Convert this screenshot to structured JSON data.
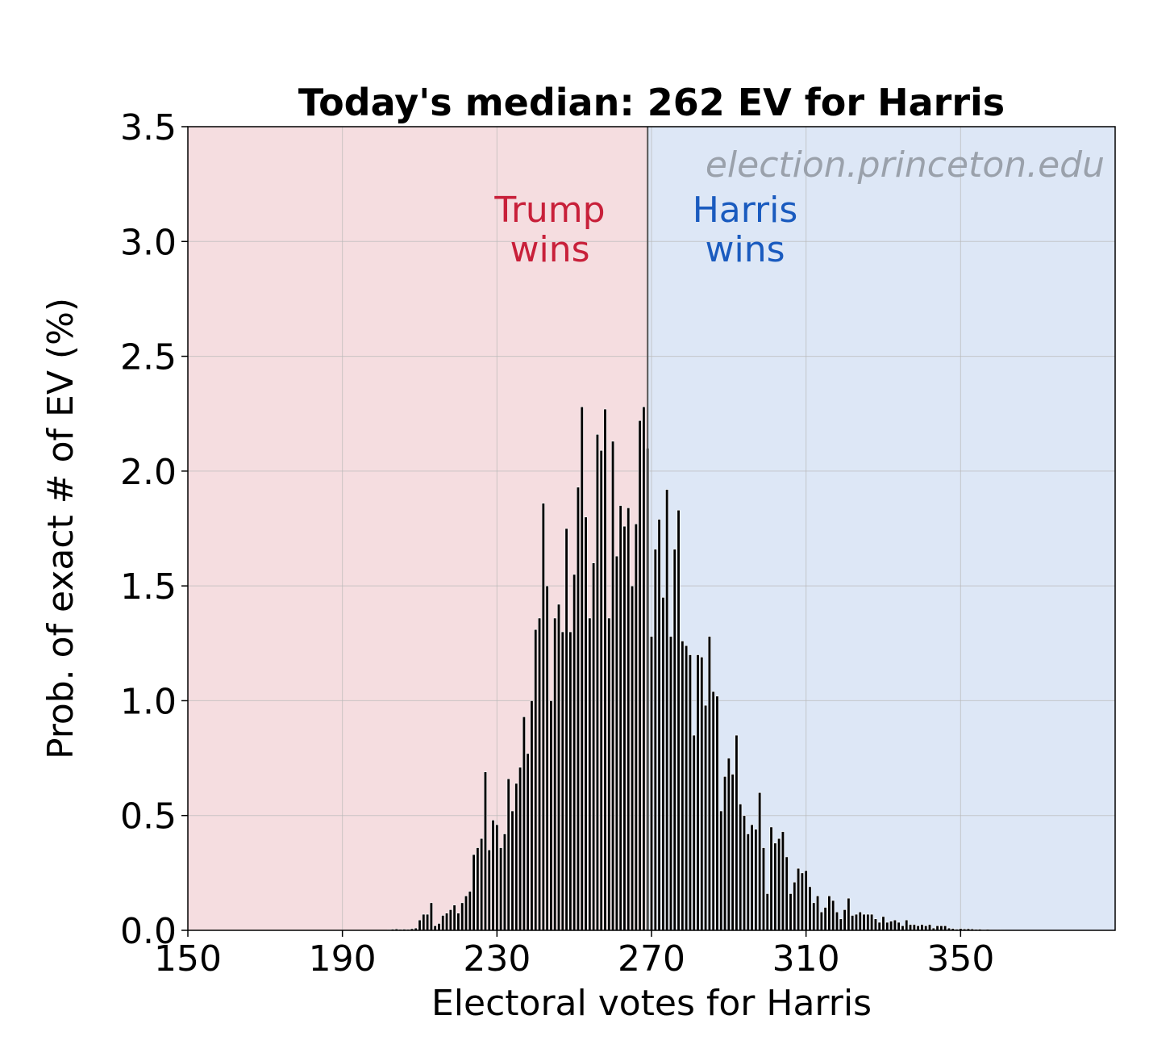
{
  "chart_data": {
    "type": "bar",
    "title": "Today's median: 262 EV for Harris",
    "xlabel": "Electoral votes for Harris",
    "ylabel": "Prob. of exact # of EV (%)",
    "xlim": [
      150,
      390
    ],
    "ylim": [
      0,
      3.5
    ],
    "xticks": [
      "150",
      "190",
      "230",
      "270",
      "310",
      "350"
    ],
    "yticks": [
      "0.0",
      "0.5",
      "1.0",
      "1.5",
      "2.0",
      "2.5",
      "3.0",
      "3.5"
    ],
    "grid": true,
    "threshold": 269,
    "regions": [
      {
        "label_line1": "Trump",
        "label_line2": "wins",
        "color": "#c8203a",
        "fill": "#f5dde0"
      },
      {
        "label_line1": "Harris",
        "label_line2": "wins",
        "color": "#1a5bbf",
        "fill": "#dde7f6"
      }
    ],
    "watermark": "election.princeton.edu",
    "watermark_color": "#9aa1ab",
    "bar_color": "#000000",
    "x": [
      202,
      203,
      204,
      205,
      206,
      207,
      208,
      209,
      210,
      211,
      212,
      213,
      214,
      215,
      216,
      217,
      218,
      219,
      220,
      221,
      222,
      223,
      224,
      225,
      226,
      227,
      228,
      229,
      230,
      231,
      232,
      233,
      234,
      235,
      236,
      237,
      238,
      239,
      240,
      241,
      242,
      243,
      244,
      245,
      246,
      247,
      248,
      249,
      250,
      251,
      252,
      253,
      254,
      255,
      256,
      257,
      258,
      259,
      260,
      261,
      262,
      263,
      264,
      265,
      266,
      267,
      268,
      269,
      270,
      271,
      272,
      273,
      274,
      275,
      276,
      277,
      278,
      279,
      280,
      281,
      282,
      283,
      284,
      285,
      286,
      287,
      288,
      289,
      290,
      291,
      292,
      293,
      294,
      295,
      296,
      297,
      298,
      299,
      300,
      301,
      302,
      303,
      304,
      305,
      306,
      307,
      308,
      309,
      310,
      311,
      312,
      313,
      314,
      315,
      316,
      317,
      318,
      319,
      320,
      321,
      322,
      323,
      324,
      325,
      326,
      327,
      328,
      329,
      330,
      331,
      332,
      333,
      334,
      335,
      336,
      337,
      338,
      339,
      340,
      341,
      342,
      343,
      344,
      345,
      346,
      347,
      348,
      349,
      350,
      351,
      352,
      353,
      354,
      355,
      356,
      357,
      358,
      359,
      360,
      361
    ],
    "values": [
      0.003,
      0.005,
      0.006,
      0.004,
      0.005,
      0.004,
      0.007,
      0.01,
      0.045,
      0.07,
      0.07,
      0.12,
      0.02,
      0.03,
      0.065,
      0.075,
      0.09,
      0.11,
      0.075,
      0.12,
      0.15,
      0.17,
      0.33,
      0.36,
      0.4,
      0.69,
      0.35,
      0.48,
      0.46,
      0.36,
      0.42,
      0.66,
      0.52,
      0.64,
      0.71,
      0.93,
      0.77,
      1.0,
      1.31,
      1.36,
      1.86,
      1.5,
      1.0,
      1.36,
      1.42,
      1.3,
      1.75,
      1.3,
      1.55,
      1.93,
      2.28,
      1.8,
      1.36,
      1.6,
      2.16,
      2.09,
      2.27,
      1.36,
      2.13,
      1.63,
      1.85,
      1.76,
      1.84,
      1.5,
      1.77,
      2.22,
      2.28,
      2.1,
      1.28,
      1.66,
      1.79,
      1.45,
      1.92,
      1.28,
      1.66,
      1.83,
      1.26,
      1.24,
      1.2,
      0.85,
      1.2,
      1.19,
      0.98,
      1.28,
      1.04,
      1.02,
      0.52,
      0.67,
      0.75,
      0.68,
      0.85,
      0.55,
      0.5,
      0.42,
      0.46,
      0.44,
      0.6,
      0.36,
      0.16,
      0.45,
      0.38,
      0.4,
      0.43,
      0.32,
      0.16,
      0.21,
      0.27,
      0.25,
      0.26,
      0.19,
      0.12,
      0.15,
      0.08,
      0.1,
      0.15,
      0.13,
      0.08,
      0.05,
      0.09,
      0.14,
      0.065,
      0.07,
      0.08,
      0.07,
      0.07,
      0.07,
      0.05,
      0.035,
      0.06,
      0.035,
      0.04,
      0.045,
      0.035,
      0.02,
      0.045,
      0.025,
      0.025,
      0.02,
      0.025,
      0.02,
      0.025,
      0.01,
      0.02,
      0.02,
      0.02,
      0.01,
      0.008,
      0.005,
      0.008,
      0.006,
      0.007,
      0.006,
      0.004,
      0.005,
      0.003,
      0.004,
      0.003,
      0.003,
      0.003,
      0.002
    ]
  }
}
